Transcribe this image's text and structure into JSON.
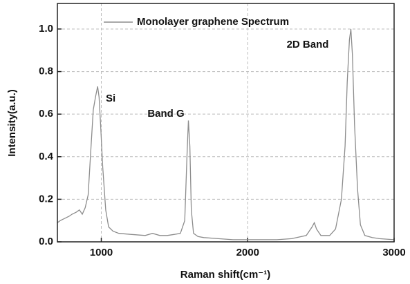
{
  "chart_data": {
    "type": "line",
    "xlabel": "Raman shift(cm⁻¹)",
    "ylabel": "Intensity(a.u.)",
    "xlim": [
      700,
      3000
    ],
    "ylim": [
      0,
      1.12
    ],
    "xticks": [
      1000,
      2000,
      3000
    ],
    "yticks": [
      {
        "value": 0,
        "label": "0.0"
      },
      0.2,
      0.4,
      0.6,
      0.8,
      {
        "value": 1,
        "label": "1.0"
      }
    ],
    "grid": true,
    "legend": "top",
    "annotations": [
      "Si",
      "Band G",
      "2D Band"
    ],
    "series": [
      {
        "name": "Monolayer graphene Spectrum",
        "color": "#8c8c8c",
        "x": [
          700,
          720,
          750,
          780,
          800,
          830,
          850,
          870,
          890,
          910,
          930,
          945,
          960,
          975,
          985,
          995,
          1010,
          1030,
          1050,
          1080,
          1120,
          1200,
          1300,
          1350,
          1400,
          1450,
          1500,
          1540,
          1570,
          1585,
          1595,
          1605,
          1615,
          1630,
          1660,
          1700,
          1800,
          1900,
          2000,
          2100,
          2200,
          2300,
          2400,
          2440,
          2455,
          2470,
          2500,
          2560,
          2600,
          2640,
          2665,
          2680,
          2695,
          2705,
          2715,
          2730,
          2750,
          2770,
          2800,
          2850,
          2900,
          3000
        ],
        "values": [
          0.09,
          0.1,
          0.11,
          0.12,
          0.13,
          0.14,
          0.15,
          0.13,
          0.16,
          0.22,
          0.45,
          0.62,
          0.68,
          0.73,
          0.68,
          0.55,
          0.35,
          0.15,
          0.07,
          0.05,
          0.04,
          0.035,
          0.03,
          0.04,
          0.03,
          0.03,
          0.035,
          0.04,
          0.1,
          0.4,
          0.57,
          0.45,
          0.15,
          0.04,
          0.025,
          0.02,
          0.015,
          0.01,
          0.01,
          0.01,
          0.01,
          0.015,
          0.03,
          0.07,
          0.09,
          0.06,
          0.03,
          0.03,
          0.06,
          0.2,
          0.45,
          0.75,
          0.95,
          1.0,
          0.88,
          0.55,
          0.25,
          0.08,
          0.03,
          0.02,
          0.015,
          0.01
        ]
      }
    ]
  }
}
